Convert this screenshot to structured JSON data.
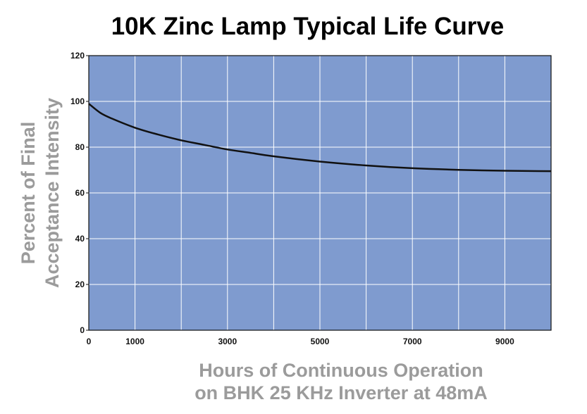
{
  "chart_data": {
    "type": "line",
    "title": "10K Zinc Lamp Typical Life Curve",
    "xlabel": [
      "Hours of Continuous Operation",
      "on BHK 25 KHz Inverter at 48mA"
    ],
    "ylabel": [
      "Percent of Final",
      "Acceptance Intensity"
    ],
    "xlim": [
      0,
      10000
    ],
    "ylim": [
      0,
      120
    ],
    "x_ticks": [
      0,
      1000,
      3000,
      5000,
      7000,
      9000
    ],
    "x_tick_labels": [
      "0",
      "1000",
      "3000",
      "5000",
      "7000",
      "9000"
    ],
    "x_grid": [
      1000,
      2000,
      3000,
      4000,
      5000,
      6000,
      7000,
      8000,
      9000
    ],
    "y_ticks": [
      0,
      20,
      40,
      60,
      80,
      100,
      120
    ],
    "y_tick_labels": [
      "0",
      "20",
      "40",
      "60",
      "80",
      "100",
      "120"
    ],
    "grid": true,
    "background_color": "#7f9bcf",
    "grid_color": "#ffffff",
    "line_color": "#111111",
    "series": [
      {
        "x": [
          0,
          250,
          500,
          1000,
          1500,
          2000,
          2500,
          3000,
          3500,
          4000,
          5000,
          6000,
          7000,
          8000,
          9000,
          10000
        ],
        "values": [
          99,
          95,
          92.5,
          88.5,
          85.5,
          83,
          81,
          79,
          77.5,
          76,
          73.7,
          72,
          70.8,
          70.1,
          69.7,
          69.5
        ]
      }
    ]
  }
}
